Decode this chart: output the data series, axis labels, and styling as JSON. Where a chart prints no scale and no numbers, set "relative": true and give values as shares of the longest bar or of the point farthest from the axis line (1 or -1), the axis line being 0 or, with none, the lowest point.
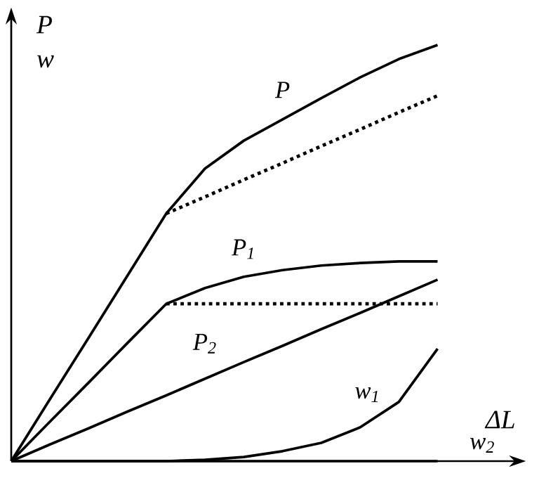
{
  "chart_data": {
    "type": "line",
    "relative": true,
    "xlabel": "ΔL",
    "ylabel": "P",
    "annotations": [
      "w"
    ],
    "categories": [
      null,
      null,
      null,
      null,
      null,
      null,
      null,
      null,
      null,
      null,
      null,
      null
    ],
    "marker": "none",
    "line_style": "solid",
    "series": [
      {
        "name": "P",
        "color": "#000000",
        "values": [
          0,
          0.149,
          0.297,
          0.446,
          0.595,
          0.703,
          0.77,
          0.821,
          0.872,
          0.922,
          0.966,
          1
        ]
      },
      {
        "color": "#000000",
        "line_style": "dotted",
        "values": [
          null,
          null,
          null,
          null,
          0.595,
          0.635,
          0.676,
          0.716,
          0.757,
          0.797,
          0.838,
          0.878
        ]
      },
      {
        "name": "P$_{1}$",
        "color": "#000000",
        "values": [
          0,
          0.095,
          0.189,
          0.284,
          0.378,
          0.416,
          0.443,
          0.459,
          0.47,
          0.476,
          0.48,
          0.48
        ]
      },
      {
        "color": "#000000",
        "line_style": "dotted",
        "values": [
          null,
          null,
          null,
          null,
          0.378,
          0.378,
          0.378,
          0.378,
          0.378,
          0.378,
          0.378,
          0.378
        ]
      },
      {
        "name": "P$_{2}$",
        "color": "#000000",
        "values": [
          0,
          0.04,
          0.079,
          0.119,
          0.158,
          0.198,
          0.238,
          0.277,
          0.317,
          0.356,
          0.396,
          0.436
        ]
      },
      {
        "name": "w$_{1}$",
        "color": "#000000",
        "values": [
          0,
          0,
          0,
          0,
          0,
          0.003,
          0.01,
          0.024,
          0.044,
          0.081,
          0.142,
          0.27
        ]
      },
      {
        "name": "w$_{2}$",
        "color": "#000000",
        "values": [
          0,
          0,
          0,
          0,
          0,
          0,
          0,
          0,
          0,
          0,
          0,
          0
        ]
      }
    ]
  }
}
